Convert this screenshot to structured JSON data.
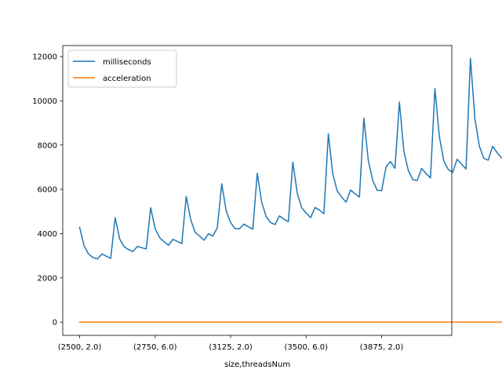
{
  "chart_data": {
    "type": "line",
    "title": "",
    "xlabel": "size,threadsNum",
    "ylabel": "",
    "xlim": [
      -3.8,
      83.8
    ],
    "ylim": [
      -600,
      12500
    ],
    "yticks": [
      0,
      2000,
      4000,
      6000,
      8000,
      10000,
      12000
    ],
    "xticks": [
      {
        "index": 0,
        "label": "(2500, 2.0)"
      },
      {
        "index": 17,
        "label": "(2750, 6.0)"
      },
      {
        "index": 34,
        "label": "(3125, 2.0)"
      },
      {
        "index": 51,
        "label": "(3500, 6.0)"
      },
      {
        "index": 68,
        "label": "(3875, 2.0)"
      }
    ],
    "grid": false,
    "legend_position": "upper-left",
    "series": [
      {
        "name": "milliseconds",
        "color": "#1f77b4",
        "values": [
          4280,
          3450,
          3080,
          2920,
          2850,
          3080,
          2980,
          2880,
          4720,
          3770,
          3410,
          3280,
          3190,
          3420,
          3360,
          3310,
          5170,
          4230,
          3820,
          3640,
          3470,
          3740,
          3650,
          3550,
          5680,
          4640,
          4060,
          3890,
          3700,
          3990,
          3890,
          4260,
          6250,
          5030,
          4500,
          4220,
          4220,
          4430,
          4310,
          4200,
          6730,
          5410,
          4770,
          4500,
          4410,
          4800,
          4650,
          4540,
          7230,
          5830,
          5170,
          4930,
          4720,
          5180,
          5060,
          4900,
          8510,
          6700,
          5930,
          5650,
          5420,
          5970,
          5800,
          5650,
          9220,
          7310,
          6400,
          5960,
          5940,
          7020,
          7260,
          6950,
          9950,
          7730,
          6860,
          6440,
          6400,
          6950,
          6710,
          6520,
          10550,
          8390,
          7280,
          6900,
          6770,
          7360,
          7140,
          6920,
          11920,
          9200,
          7960,
          7400,
          7320,
          7950,
          7660,
          7420
        ]
      },
      {
        "name": "acceleration",
        "color": "#ff7f0e",
        "values": [
          1,
          1,
          1,
          1,
          1,
          1,
          1,
          1,
          1,
          1,
          1,
          1,
          1,
          1,
          1,
          1,
          1,
          1,
          1,
          1,
          1,
          1,
          1,
          1,
          1,
          1,
          1,
          1,
          1,
          1,
          1,
          1,
          1,
          1,
          1,
          1,
          1,
          1,
          1,
          1,
          1,
          1,
          1,
          1,
          1,
          1,
          1,
          1,
          1,
          1,
          1,
          1,
          1,
          1,
          1,
          1,
          1,
          1,
          1,
          1,
          1,
          1,
          1,
          1,
          1,
          1,
          1,
          1,
          1,
          1,
          1,
          1,
          1,
          1,
          1,
          1,
          1,
          1,
          1,
          1,
          1,
          1,
          1,
          1,
          1,
          1,
          1,
          1,
          1,
          1,
          1,
          1,
          1,
          1,
          1,
          1
        ]
      }
    ]
  }
}
